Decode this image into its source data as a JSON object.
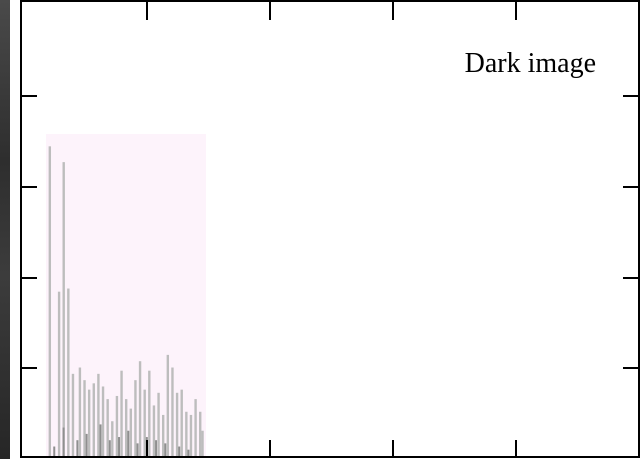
{
  "chart_data": {
    "type": "bar",
    "title": "Dark image",
    "xlabel": "",
    "ylabel": "",
    "xlim": [
      0,
      255
    ],
    "ylim": [
      0,
      1
    ],
    "grid": false,
    "shaded_region": {
      "x": [
        0,
        70
      ],
      "color": "#fdf3fb"
    },
    "bar_color": "#bdbdbd",
    "inner_bar_color": "#8f8f8f",
    "series": [
      {
        "values": [
          [
            2,
            0.98
          ],
          [
            6,
            0.52
          ],
          [
            8,
            0.93
          ],
          [
            10,
            0.53
          ],
          [
            12,
            0.26
          ],
          [
            15,
            0.28
          ],
          [
            17,
            0.24
          ],
          [
            19,
            0.21
          ],
          [
            21,
            0.23
          ],
          [
            23,
            0.26
          ],
          [
            25,
            0.22
          ],
          [
            27,
            0.18
          ],
          [
            29,
            0.11
          ],
          [
            31,
            0.19
          ],
          [
            33,
            0.27
          ],
          [
            35,
            0.18
          ],
          [
            37,
            0.15
          ],
          [
            39,
            0.24
          ],
          [
            41,
            0.3
          ],
          [
            43,
            0.21
          ],
          [
            45,
            0.27
          ],
          [
            47,
            0.16
          ],
          [
            49,
            0.2
          ],
          [
            51,
            0.13
          ],
          [
            53,
            0.32
          ],
          [
            55,
            0.28
          ],
          [
            57,
            0.2
          ],
          [
            59,
            0.21
          ],
          [
            61,
            0.14
          ],
          [
            63,
            0.13
          ],
          [
            65,
            0.18
          ],
          [
            67,
            0.14
          ],
          [
            68,
            0.08
          ]
        ]
      },
      {
        "values": [
          [
            4,
            0.03
          ],
          [
            8,
            0.09
          ],
          [
            14,
            0.05
          ],
          [
            18,
            0.07
          ],
          [
            24,
            0.1
          ],
          [
            28,
            0.05
          ],
          [
            32,
            0.06
          ],
          [
            36,
            0.08
          ],
          [
            40,
            0.04
          ],
          [
            44,
            0.06
          ],
          [
            48,
            0.05
          ],
          [
            52,
            0.04
          ],
          [
            58,
            0.03
          ],
          [
            62,
            0.02
          ]
        ]
      }
    ]
  }
}
